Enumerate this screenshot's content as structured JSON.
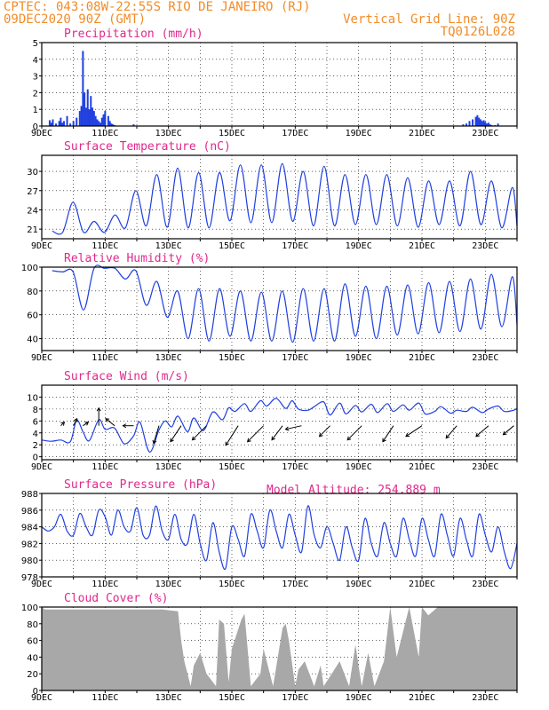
{
  "header": {
    "line1_left": "CPTEC:  043:08W-22:55S  RIO DE JANEIRO (RJ)",
    "line2_left": "09DEC2020 90Z (GMT)",
    "line2_right": "Vertical Grid Line: 90Z",
    "line3_right": "TQ0126L028"
  },
  "colors": {
    "header": "#f28c28",
    "title": "#e0288c",
    "series": "#2040e0",
    "cloud": "#a8a8a8",
    "grid": "#000000"
  },
  "x_ticks": [
    "9DEC",
    "11DEC",
    "13DEC",
    "15DEC",
    "17DEC",
    "19DEC",
    "21DEC",
    "23DEC"
  ],
  "extra_label": "Model Altitude: 254.889 m",
  "chart_data": [
    {
      "type": "bar",
      "title": "Precipitation (mm/h)",
      "ylim": [
        0,
        5
      ],
      "yticks": [
        0,
        1,
        2,
        3,
        4,
        5
      ],
      "x": [
        0.25,
        0.3,
        0.35,
        0.45,
        0.55,
        0.6,
        0.65,
        0.7,
        0.8,
        0.9,
        1.0,
        1.1,
        1.2,
        1.25,
        1.3,
        1.35,
        1.4,
        1.45,
        1.5,
        1.55,
        1.6,
        1.65,
        1.7,
        1.75,
        1.8,
        1.85,
        1.9,
        1.95,
        2.0,
        2.1,
        2.15,
        2.2,
        2.25,
        2.3,
        2.9,
        13.3,
        13.4,
        13.5,
        13.6,
        13.7,
        13.75,
        13.8,
        13.85,
        13.9,
        13.95,
        14.0,
        14.05,
        14.1,
        14.15,
        14.2,
        14.3,
        14.4
      ],
      "values": [
        0.35,
        0.2,
        0.4,
        0.15,
        0.3,
        0.5,
        0.2,
        0.3,
        0.6,
        0.15,
        0.3,
        0.5,
        0.9,
        1.2,
        4.5,
        2.0,
        1.1,
        2.2,
        1.0,
        1.8,
        1.1,
        0.9,
        0.6,
        0.4,
        0.3,
        0.2,
        0.5,
        0.7,
        0.9,
        0.6,
        0.3,
        0.15,
        0.1,
        0.05,
        0.1,
        0.1,
        0.15,
        0.3,
        0.4,
        0.55,
        0.65,
        0.5,
        0.4,
        0.3,
        0.35,
        0.25,
        0.15,
        0.2,
        0.1,
        0.05,
        0.05,
        0.15
      ]
    },
    {
      "type": "line",
      "title": "Surface Temperature (nC)",
      "ylim": [
        19.5,
        32.5
      ],
      "yticks": [
        21,
        24,
        27,
        30
      ],
      "kind": "diurnal",
      "max": [
        20.7,
        25.2,
        22.2,
        23.2,
        27.0,
        29.5,
        30.5,
        29.8,
        29.8,
        31.0,
        31.0,
        31.2,
        30.0,
        30.8,
        29.5,
        29.5,
        29.5,
        29.0,
        28.5,
        28.5,
        30.0,
        28.5,
        27.5
      ],
      "min": [
        20.5,
        20.5,
        20.5,
        21.2,
        21.5,
        21.3,
        21.2,
        21.2,
        22.3,
        22.0,
        22.0,
        22.2,
        21.5,
        21.5,
        21.7,
        21.7,
        21.5,
        21.3,
        21.7,
        21.5,
        21.7,
        21.2,
        21.5
      ]
    },
    {
      "type": "line",
      "title": "Relative Humidity (%)",
      "ylim": [
        30,
        100
      ],
      "yticks": [
        40,
        60,
        80,
        100
      ],
      "kind": "diurnal",
      "max": [
        97,
        96,
        99,
        99,
        97,
        88,
        80,
        82,
        82,
        80,
        79,
        80,
        82,
        82,
        86,
        84,
        84,
        85,
        87,
        88,
        90,
        94,
        92
      ],
      "min": [
        96,
        64,
        99,
        90,
        68,
        58,
        40,
        38,
        42,
        38,
        38,
        37,
        38,
        38,
        42,
        40,
        43,
        44,
        45,
        46,
        48,
        50,
        52
      ]
    },
    {
      "type": "line",
      "title": "Surface Wind (m/s)",
      "ylim": [
        -0.5,
        12
      ],
      "yticks": [
        0,
        2,
        4,
        6,
        8,
        10
      ],
      "kind": "points",
      "x": [
        0,
        0.3,
        0.6,
        0.9,
        1.1,
        1.3,
        1.5,
        1.8,
        2.0,
        2.3,
        2.6,
        2.9,
        3.1,
        3.4,
        3.7,
        3.9,
        4.1,
        4.3,
        4.6,
        4.8,
        5.1,
        5.4,
        5.7,
        5.9,
        6.1,
        6.4,
        6.6,
        6.9,
        7.1,
        7.4,
        7.7,
        7.9,
        8.1,
        8.4,
        8.6,
        8.9,
        9.1,
        9.4,
        9.6,
        9.9,
        10.1,
        10.4,
        10.6,
        10.9,
        11.1,
        11.4,
        11.6,
        11.9,
        12.1,
        12.4,
        12.6,
        12.9,
        13.1,
        13.4,
        13.6,
        13.9,
        14.1,
        14.4,
        14.6,
        14.9,
        15.0
      ],
      "values": [
        2.8,
        2.6,
        2.8,
        2.5,
        6.1,
        4.2,
        2.7,
        6.2,
        4.6,
        4.8,
        2.2,
        3.5,
        5.8,
        0.8,
        4.5,
        6.0,
        5.0,
        6.8,
        4.2,
        6.5,
        4.4,
        7.5,
        6.2,
        8.2,
        7.6,
        8.9,
        7.6,
        9.4,
        8.5,
        9.8,
        8.1,
        9.4,
        8.0,
        7.8,
        8.4,
        9.2,
        7.0,
        9.0,
        7.2,
        8.6,
        7.5,
        8.8,
        7.4,
        8.9,
        7.6,
        8.7,
        7.8,
        9.0,
        7.2,
        7.6,
        8.4,
        7.3,
        7.8,
        7.6,
        8.3,
        7.4,
        8.0,
        8.5,
        7.6,
        7.8,
        8.1
      ],
      "barbs": [
        {
          "x": 0.6,
          "u": 1.0,
          "v": 1.0
        },
        {
          "x": 1.0,
          "u": 1.0,
          "v": 2.0
        },
        {
          "x": 1.3,
          "u": 1.5,
          "v": 1.0
        },
        {
          "x": 1.8,
          "u": 0.0,
          "v": 5.0
        },
        {
          "x": 2.3,
          "u": -2.5,
          "v": 2.0
        },
        {
          "x": 2.9,
          "u": -3.0,
          "v": 0.0
        },
        {
          "x": 3.7,
          "u": -1.5,
          "v": -5.0
        },
        {
          "x": 4.4,
          "u": -3.0,
          "v": -4.5
        },
        {
          "x": 5.2,
          "u": -4.0,
          "v": -4.0
        },
        {
          "x": 6.2,
          "u": -3.5,
          "v": -5.5
        },
        {
          "x": 7.0,
          "u": -4.5,
          "v": -4.5
        },
        {
          "x": 7.6,
          "u": -3.0,
          "v": -4.0
        },
        {
          "x": 8.2,
          "u": -4.5,
          "v": -1.0
        },
        {
          "x": 9.1,
          "u": -3.0,
          "v": -3.0
        },
        {
          "x": 10.1,
          "u": -4.0,
          "v": -4.0
        },
        {
          "x": 11.1,
          "u": -3.0,
          "v": -4.5
        },
        {
          "x": 12.0,
          "u": -4.5,
          "v": -3.0
        },
        {
          "x": 13.1,
          "u": -3.0,
          "v": -3.5
        },
        {
          "x": 14.1,
          "u": -3.5,
          "v": -3.0
        },
        {
          "x": 14.9,
          "u": -3.0,
          "v": -2.5
        }
      ]
    },
    {
      "type": "line",
      "title": "Surface Pressure (hPa)",
      "ylim": [
        978,
        988
      ],
      "yticks": [
        978,
        980,
        982,
        984,
        986,
        988
      ],
      "kind": "points",
      "x": [
        0,
        0.2,
        0.4,
        0.6,
        0.8,
        1.0,
        1.2,
        1.4,
        1.6,
        1.8,
        2.0,
        2.2,
        2.4,
        2.6,
        2.8,
        3.0,
        3.2,
        3.4,
        3.6,
        3.8,
        4.0,
        4.2,
        4.4,
        4.6,
        4.8,
        5.0,
        5.2,
        5.4,
        5.6,
        5.8,
        6.0,
        6.2,
        6.4,
        6.6,
        6.8,
        7.0,
        7.2,
        7.4,
        7.6,
        7.8,
        8.0,
        8.2,
        8.4,
        8.6,
        8.8,
        9.0,
        9.2,
        9.4,
        9.6,
        9.8,
        10.0,
        10.2,
        10.4,
        10.6,
        10.8,
        11.0,
        11.2,
        11.4,
        11.6,
        11.8,
        12.0,
        12.2,
        12.4,
        12.6,
        12.8,
        13.0,
        13.2,
        13.4,
        13.6,
        13.8,
        14.0,
        14.2,
        14.4,
        14.6,
        14.8,
        15.0
      ],
      "values": [
        984.0,
        983.5,
        984.0,
        985.5,
        983.5,
        983.0,
        985.6,
        984.0,
        983.0,
        986.0,
        985.2,
        983.0,
        986.0,
        984.0,
        983.5,
        986.3,
        983.0,
        983.0,
        986.5,
        983.5,
        982.5,
        985.5,
        982.5,
        982.0,
        985.5,
        982.0,
        980.0,
        984.5,
        981.0,
        979.0,
        984.0,
        982.5,
        980.5,
        985.5,
        983.5,
        981.5,
        986.0,
        983.5,
        981.5,
        985.5,
        983.0,
        981.0,
        986.5,
        983.0,
        981.5,
        984.0,
        982.0,
        980.0,
        984.0,
        981.5,
        980.0,
        985.0,
        982.0,
        980.5,
        984.5,
        982.0,
        980.5,
        985.0,
        982.5,
        980.5,
        985.0,
        982.5,
        980.5,
        985.5,
        983.0,
        980.5,
        985.0,
        982.5,
        980.5,
        985.5,
        983.0,
        981.0,
        984.0,
        981.0,
        979.0,
        982.0
      ]
    },
    {
      "type": "area",
      "title": "Cloud Cover (%)",
      "ylim": [
        0,
        100
      ],
      "yticks": [
        0,
        20,
        40,
        60,
        80,
        100
      ],
      "x": [
        0,
        0.1,
        3.8,
        4.3,
        4.4,
        4.5,
        4.6,
        4.7,
        4.8,
        5.0,
        5.2,
        5.5,
        5.6,
        5.75,
        5.9,
        6.0,
        6.3,
        6.4,
        6.6,
        6.9,
        7.0,
        7.2,
        7.3,
        7.6,
        7.7,
        7.8,
        8.0,
        8.1,
        8.3,
        8.6,
        8.8,
        8.9,
        9.4,
        9.7,
        9.9,
        10.1,
        10.3,
        10.5,
        10.8,
        11.0,
        11.2,
        11.6,
        11.9,
        12.0,
        12.2,
        12.5,
        15.0
      ],
      "values": [
        100,
        97,
        97,
        95,
        60,
        35,
        20,
        5,
        30,
        45,
        20,
        5,
        85,
        80,
        10,
        50,
        85,
        92,
        5,
        20,
        50,
        20,
        5,
        75,
        80,
        60,
        5,
        25,
        35,
        5,
        30,
        5,
        35,
        5,
        55,
        5,
        45,
        5,
        35,
        100,
        40,
        100,
        40,
        100,
        90,
        100,
        100
      ]
    }
  ]
}
